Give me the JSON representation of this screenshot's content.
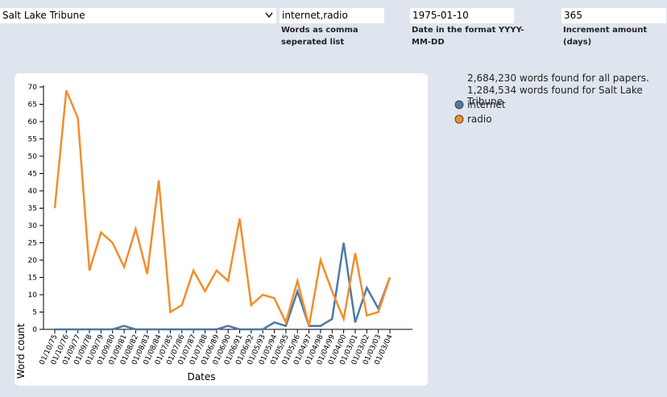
{
  "controls": {
    "paper": "Salt Lake Tribune",
    "words": "internet,radio",
    "words_label": "Words as comma seperated list",
    "date": "1975-01-10",
    "date_label": "Date in the format YYYY-MM-DD",
    "increment": "365",
    "increment_label": "Increment amount (days)"
  },
  "stats": [
    "2,684,230 words found for all papers.",
    "1,284,534 words found for Salt Lake Tribune"
  ],
  "chart_data": {
    "type": "line",
    "x_label": "Dates",
    "y_label": "Word count",
    "categories": [
      "01/10/75",
      "01/10/76",
      "01/09/77",
      "01/09/78",
      "01/09/79",
      "01/09/80",
      "01/09/81",
      "01/08/82",
      "01/08/83",
      "01/08/84",
      "01/07/85",
      "01/07/86",
      "01/07/87",
      "01/07/88",
      "01/06/89",
      "01/06/90",
      "01/06/91",
      "01/06/92",
      "01/05/93",
      "01/05/94",
      "01/05/95",
      "01/05/96",
      "01/04/97",
      "01/04/98",
      "01/04/99",
      "01/04/00",
      "01/03/01",
      "01/03/02",
      "01/03/03",
      "01/03/04"
    ],
    "series": [
      {
        "name": "internet",
        "color": "#4e79a7",
        "values": [
          0,
          0,
          0,
          0,
          0,
          0,
          1,
          0,
          0,
          0,
          0,
          0,
          0,
          0,
          0,
          1,
          0,
          0,
          0,
          2,
          1,
          11,
          1,
          1,
          3,
          25,
          2,
          12,
          6,
          15
        ]
      },
      {
        "name": "radio",
        "color": "#f28e2b",
        "values": [
          35,
          69,
          61,
          17,
          28,
          25,
          18,
          29,
          16,
          43,
          5,
          7,
          17,
          11,
          17,
          14,
          32,
          7,
          10,
          9,
          2,
          14,
          1,
          20,
          11,
          3,
          22,
          4,
          5,
          15
        ]
      }
    ],
    "ylim": [
      0,
      70
    ],
    "yticks": [
      0,
      5,
      10,
      15,
      20,
      25,
      30,
      35,
      40,
      45,
      50,
      55,
      60,
      65,
      70
    ]
  }
}
